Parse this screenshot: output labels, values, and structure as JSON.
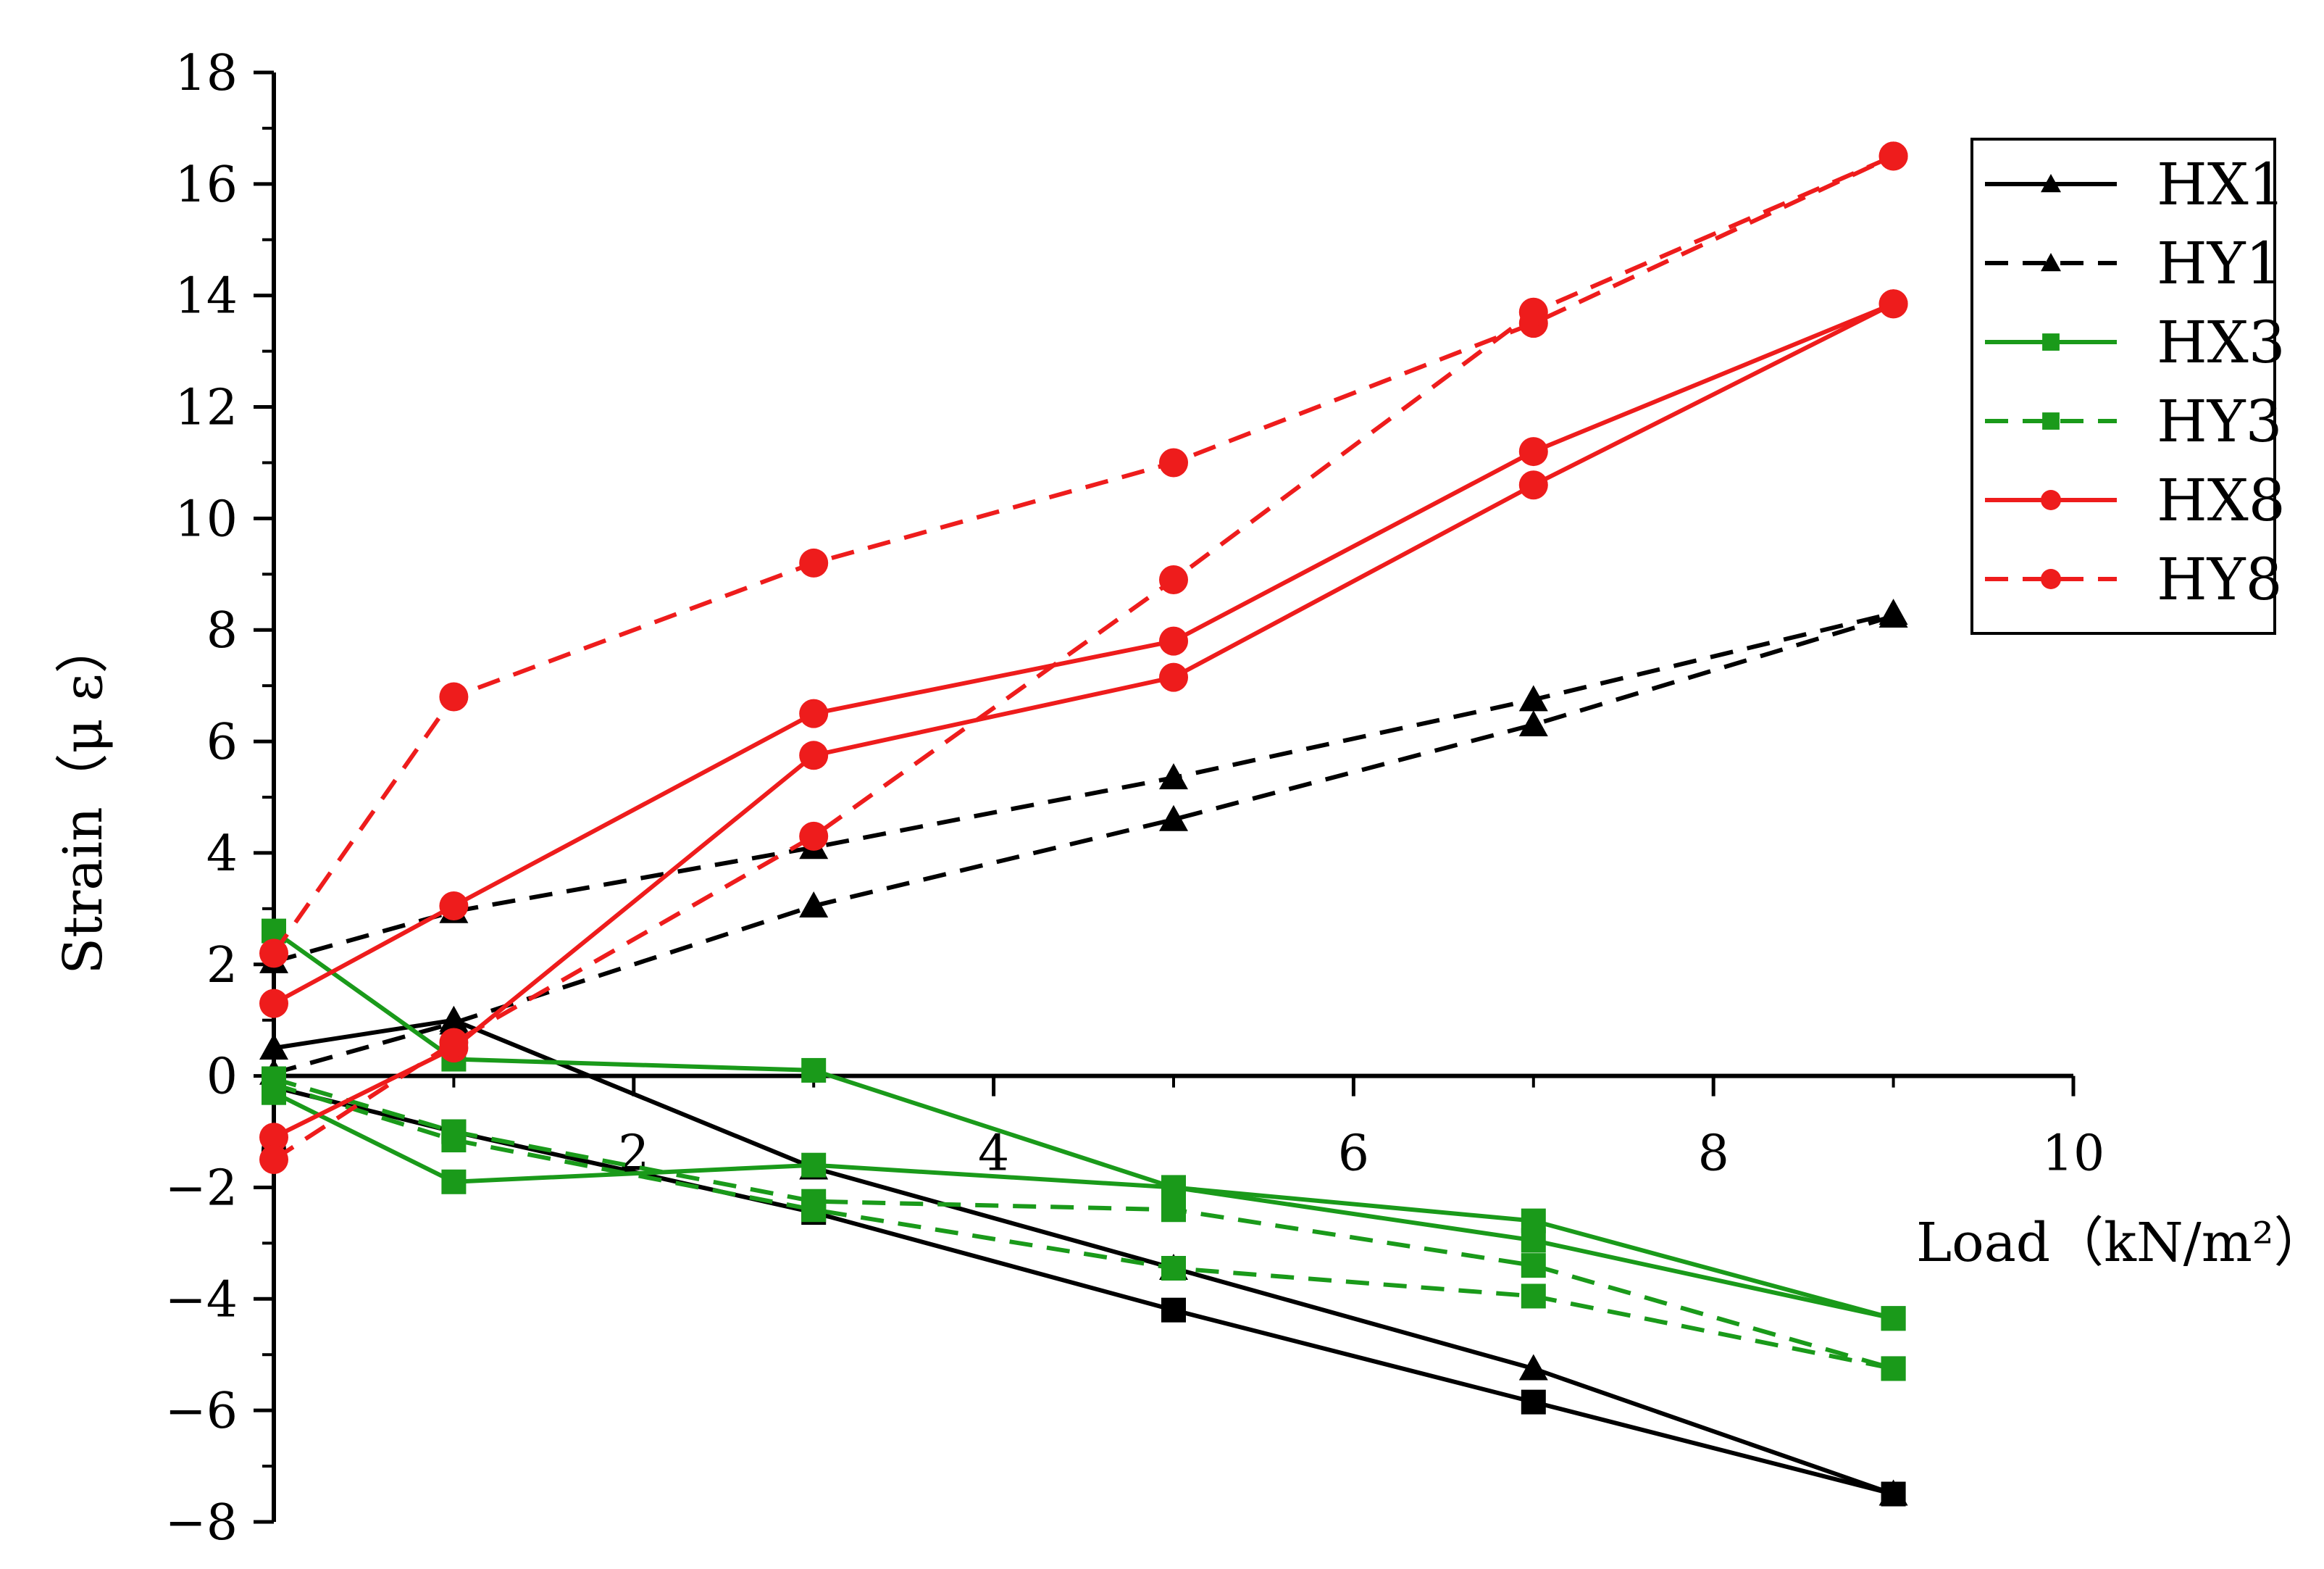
{
  "chart_data": {
    "type": "line",
    "xlabel": "Load（kN/m²）",
    "ylabel": "Strain（μ  ε）",
    "xlim": [
      0,
      10
    ],
    "ylim": [
      -8,
      18
    ],
    "xticks": [
      "0",
      "2",
      "4",
      "6",
      "8",
      "10"
    ],
    "yticks": [
      "-8",
      "-6",
      "-4",
      "-2",
      "0",
      "2",
      "4",
      "6",
      "8",
      "10",
      "12",
      "14",
      "16",
      "18"
    ],
    "legend_position": "right",
    "grid": false,
    "colors": {
      "black": "#000000",
      "green": "#1a9a1a",
      "red": "#ee1c1c"
    },
    "series": [
      {
        "name": "HX1",
        "color": "#000000",
        "dash": false,
        "marker": "triangle",
        "x": [
          0,
          1,
          3,
          5,
          7,
          9
        ],
        "y": [
          0.5,
          1.0,
          -1.65,
          -3.45,
          -5.25,
          -7.5
        ],
        "legend": true
      },
      {
        "name": "",
        "color": "#000000",
        "dash": false,
        "marker": "square",
        "x": [
          0,
          1,
          3,
          5,
          7,
          9
        ],
        "y": [
          -0.2,
          -1.0,
          -2.45,
          -4.2,
          -5.85,
          -7.5
        ],
        "legend": false
      },
      {
        "name": "HY1",
        "color": "#000000",
        "dash": true,
        "marker": "triangle",
        "x": [
          0,
          1,
          3,
          5,
          7,
          9
        ],
        "y": [
          2.05,
          2.95,
          4.1,
          5.35,
          6.75,
          8.3
        ],
        "legend": true
      },
      {
        "name": "",
        "color": "#000000",
        "dash": true,
        "marker": "triangle",
        "x": [
          0,
          1,
          3,
          5,
          7,
          9
        ],
        "y": [
          0.05,
          0.95,
          3.05,
          4.6,
          6.3,
          8.25
        ],
        "legend": false
      },
      {
        "name": "HX3",
        "color": "#1a9a1a",
        "dash": false,
        "marker": "square",
        "x": [
          0,
          1,
          3,
          5,
          7,
          9
        ],
        "y": [
          2.6,
          0.3,
          0.1,
          -2.0,
          -2.6,
          -4.35
        ],
        "legend": true
      },
      {
        "name": "",
        "color": "#1a9a1a",
        "dash": false,
        "marker": "square",
        "x": [
          0,
          1,
          3,
          5,
          7,
          9
        ],
        "y": [
          -0.3,
          -1.9,
          -1.6,
          -2.0,
          -2.95,
          -4.35
        ],
        "legend": false
      },
      {
        "name": "HY3",
        "color": "#1a9a1a",
        "dash": true,
        "marker": "square",
        "x": [
          0,
          1,
          3,
          5,
          7,
          9
        ],
        "y": [
          -0.05,
          -1.0,
          -2.25,
          -2.4,
          -3.4,
          -5.25
        ],
        "legend": true
      },
      {
        "name": "",
        "color": "#1a9a1a",
        "dash": true,
        "marker": "square",
        "x": [
          0,
          1,
          3,
          5,
          7,
          9
        ],
        "y": [
          -0.15,
          -1.15,
          -2.4,
          -3.45,
          -3.95,
          -5.25
        ],
        "legend": false
      },
      {
        "name": "HX8",
        "color": "#ee1c1c",
        "dash": false,
        "marker": "circle",
        "x": [
          0,
          1,
          3,
          5,
          7,
          9
        ],
        "y": [
          1.3,
          3.05,
          6.5,
          7.8,
          11.2,
          13.85
        ],
        "legend": true
      },
      {
        "name": "",
        "color": "#ee1c1c",
        "dash": false,
        "marker": "circle",
        "x": [
          0,
          1,
          3,
          5,
          7,
          9
        ],
        "y": [
          -1.1,
          0.5,
          5.75,
          7.15,
          10.6,
          13.85
        ],
        "legend": false
      },
      {
        "name": "HY8",
        "color": "#ee1c1c",
        "dash": true,
        "marker": "circle",
        "x": [
          0,
          1,
          3,
          5,
          7,
          9
        ],
        "y": [
          2.2,
          6.8,
          9.2,
          11.0,
          13.5,
          16.5
        ],
        "legend": true
      },
      {
        "name": "",
        "color": "#ee1c1c",
        "dash": true,
        "marker": "circle",
        "x": [
          0,
          1,
          3,
          5,
          7,
          9
        ],
        "y": [
          -1.5,
          0.6,
          4.3,
          8.9,
          13.7,
          16.5
        ],
        "legend": false
      }
    ]
  }
}
